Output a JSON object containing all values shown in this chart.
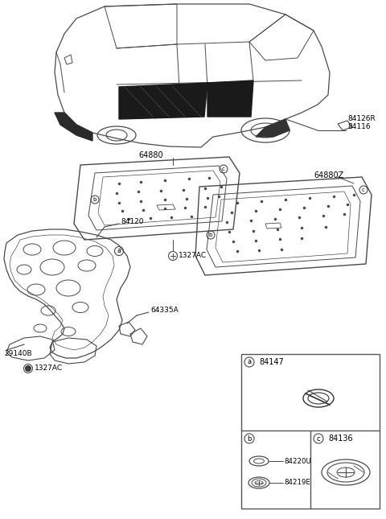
{
  "background_color": "#ffffff",
  "line_color": "#4a4a4a",
  "text_color": "#000000",
  "fig_width": 4.8,
  "fig_height": 6.45,
  "dpi": 100,
  "parts": {
    "car_label_1": "84126R",
    "car_label_2": "84116",
    "part_64880": "64880",
    "part_64880z": "64880Z",
    "part_84120": "84120",
    "part_1327ac_1": "1327AC",
    "part_1327ac_2": "1327AC",
    "part_64335a": "64335A",
    "part_29140b": "29140B",
    "part_a": "a",
    "part_b": "b",
    "part_c": "c",
    "part_84147": "84147",
    "part_84136": "84136",
    "part_84220u": "84220U",
    "part_84219e": "84219E"
  }
}
